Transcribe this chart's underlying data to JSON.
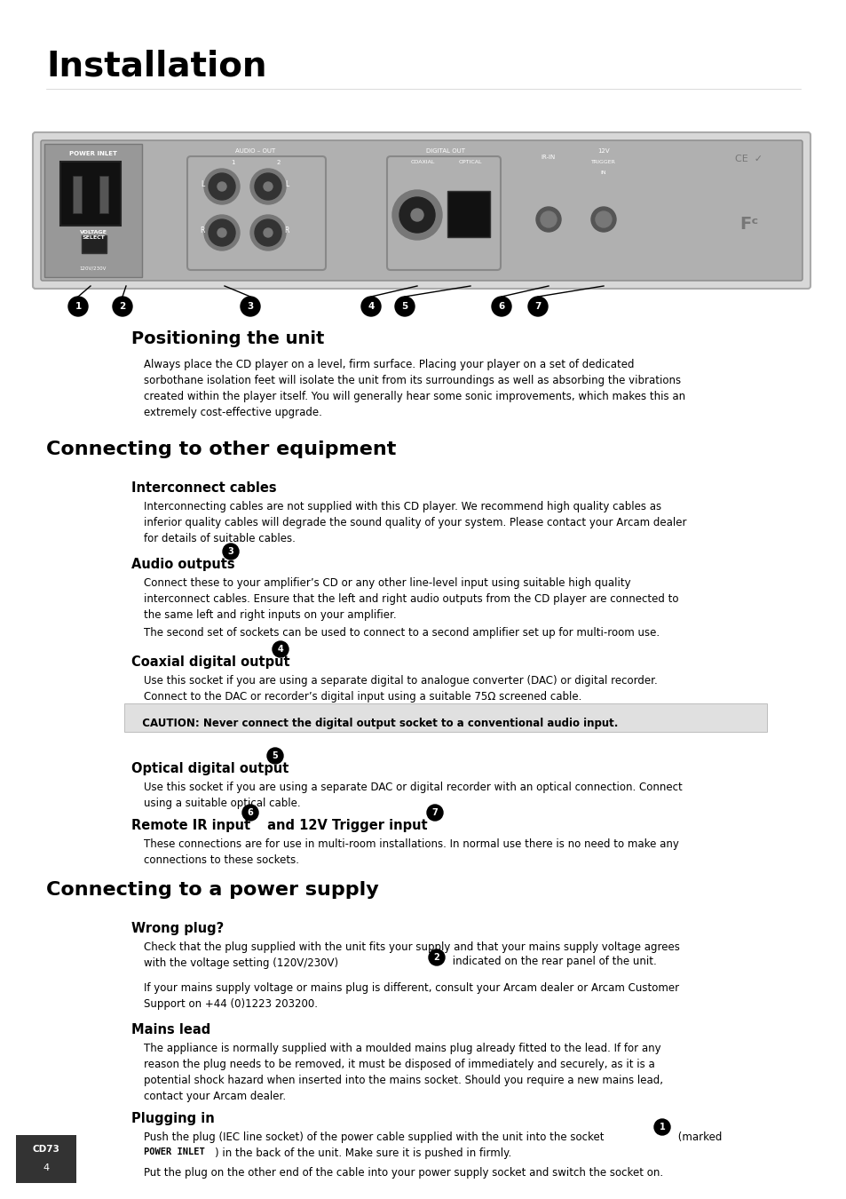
{
  "title": "Installation",
  "bg": "#ffffff",
  "title_fs": 28,
  "section_fs": 16,
  "sub_fs": 10.5,
  "body_fs": 8.5,
  "body_small_fs": 8.0,
  "positioning_title": "Positioning the unit",
  "positioning_body": "Always place the CD player on a level, firm surface. Placing your player on a set of dedicated\nsorbothane isolation feet will isolate the unit from its surroundings as well as absorbing the vibrations\ncreated within the player itself. You will generally hear some sonic improvements, which makes this an\nextremely cost-effective upgrade.",
  "connecting_other_title": "Connecting to other equipment",
  "interconnect_sub": "Interconnect cables",
  "interconnect_body": "Interconnecting cables are not supplied with this CD player. We recommend high quality cables as\ninferior quality cables will degrade the sound quality of your system. Please contact your Arcam dealer\nfor details of suitable cables.",
  "audio_sub": "Audio outputs",
  "audio_body1": "Connect these to your amplifier’s CD or any other line-level input using suitable high quality\ninterconnect cables. Ensure that the left and right audio outputs from the CD player are connected to\nthe same left and right inputs on your amplifier.",
  "audio_body2": "The second set of sockets can be used to connect to a second amplifier set up for multi-room use.",
  "coaxial_sub": "Coaxial digital output",
  "coaxial_body": "Use this socket if you are using a separate digital to analogue converter (DAC) or digital recorder.\nConnect to the DAC or recorder’s digital input using a suitable 75Ω screened cable.",
  "caution_text": "  CAUTION: Never connect the digital output socket to a conventional audio input.",
  "optical_sub": "Optical digital output",
  "optical_body": "Use this socket if you are using a separate DAC or digital recorder with an optical connection. Connect\nusing a suitable optical cable.",
  "remote_sub": "Remote IR input",
  "remote_sub2": " and 12V Trigger input",
  "remote_body": "These connections are for use in multi-room installations. In normal use there is no need to make any\nconnections to these sockets.",
  "power_title": "Connecting to a power supply",
  "wrong_sub": "Wrong plug?",
  "wrong_body1a": "Check that the plug supplied with the unit fits your supply and that your mains supply voltage agrees\nwith the voltage setting (120V/230V) ",
  "wrong_body1b": " indicated on the rear panel of the unit.",
  "wrong_body2": "If your mains supply voltage or mains plug is different, consult your Arcam dealer or Arcam Customer\nSupport on +44 (0)1223 203200.",
  "mains_sub": "Mains lead",
  "mains_body": "The appliance is normally supplied with a moulded mains plug already fitted to the lead. If for any\nreason the plug needs to be removed, it must be disposed of immediately and securely, as it is a\npotential shock hazard when inserted into the mains socket. Should you require a new mains lead,\ncontact your Arcam dealer.",
  "plugging_sub": "Plugging in",
  "plugging_body1a": "Push the plug (IEC line socket) of the power cable supplied with the unit into the socket ",
  "plugging_body1b": " (marked",
  "plugging_body1c": "POWER INLET",
  "plugging_body1d": ") in the back of the unit. Make sure it is pushed in firmly.",
  "plugging_body2": "Put the plug on the other end of the cable into your power supply socket and switch the socket on.",
  "page_num": "4",
  "page_model": "CD73"
}
